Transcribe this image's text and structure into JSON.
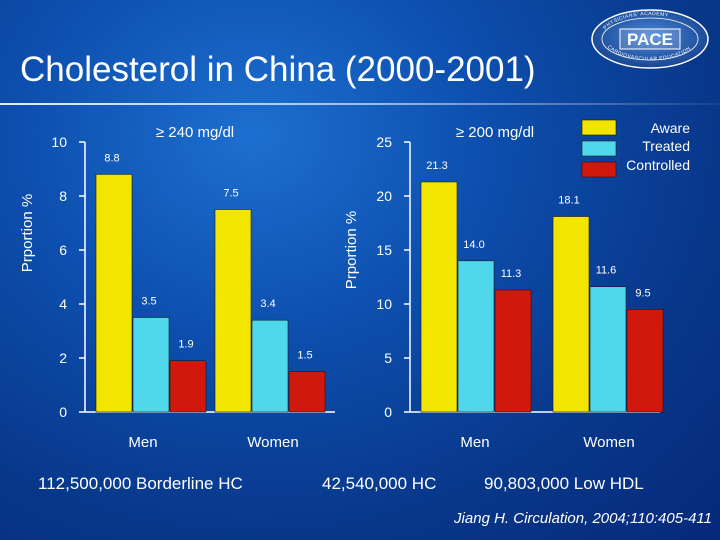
{
  "title": "Cholesterol in China (2000-2001)",
  "logo": {
    "name": "PACE",
    "ring_text": "PHYSICIANS' ACADEMY FOR CARDIOVASCULAR EDUCATION"
  },
  "colors": {
    "aware": "#f2e600",
    "treated": "#4fd8ec",
    "controlled": "#d0180c",
    "background": "#0d4fae"
  },
  "legend": [
    {
      "label": "Aware",
      "color": "#f2e600"
    },
    {
      "label": "Treated",
      "color": "#4fd8ec"
    },
    {
      "label": "Controlled",
      "color": "#d0180c"
    }
  ],
  "captions": {
    "left": "112,500,000  Borderline HC",
    "right_hc": "42,540,000 HC",
    "right_hdl": "90,803,000  Low HDL"
  },
  "citation": "Jiang H.  Circulation, 2004;110:405-411",
  "chart_data": [
    {
      "type": "bar",
      "title": "≥ 240 mg/dl",
      "ylabel": "Prportion %",
      "ylim": [
        0,
        10
      ],
      "yticks": [
        "0",
        "2",
        "4",
        "6",
        "8",
        "10"
      ],
      "categories": [
        "Men",
        "Women"
      ],
      "series": [
        {
          "name": "Aware",
          "values": [
            8.8,
            7.5
          ],
          "labels": [
            "8.8",
            "7.5"
          ]
        },
        {
          "name": "Treated",
          "values": [
            3.5,
            3.4
          ],
          "labels": [
            "3.5",
            "3.4"
          ]
        },
        {
          "name": "Controlled",
          "values": [
            1.9,
            1.5
          ],
          "labels": [
            "1.9",
            "1.5"
          ]
        }
      ]
    },
    {
      "type": "bar",
      "title": "≥ 200 mg/dl",
      "ylabel": "Prportion %",
      "ylim": [
        0,
        25
      ],
      "yticks": [
        "0",
        "5",
        "10",
        "15",
        "20",
        "25"
      ],
      "categories": [
        "Men",
        "Women"
      ],
      "series": [
        {
          "name": "Aware",
          "values": [
            21.3,
            18.1
          ],
          "labels": [
            "21.3",
            "18.1"
          ]
        },
        {
          "name": "Treated",
          "values": [
            14.0,
            11.6
          ],
          "labels": [
            "14.0",
            "11.6"
          ]
        },
        {
          "name": "Controlled",
          "values": [
            11.3,
            9.5
          ],
          "labels": [
            "11.3",
            "9.5"
          ]
        }
      ]
    }
  ]
}
